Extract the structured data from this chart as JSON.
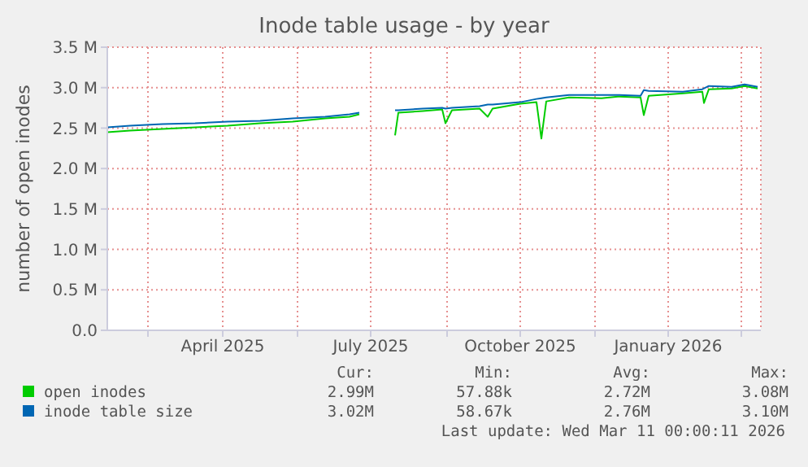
{
  "chart_data": {
    "type": "line",
    "title": "Inode table usage - by year",
    "ylabel": "number of open inodes",
    "x": [
      "2025-02-04",
      "2025-02-18",
      "2025-03-10",
      "2025-03-30",
      "2025-04-19",
      "2025-05-09",
      "2025-05-29",
      "2025-06-18",
      "2025-07-03",
      "2025-07-09",
      "2025-07-20",
      "2025-07-31",
      "2025-08-02",
      "2025-08-17",
      "2025-08-29",
      "2025-08-31",
      "2025-09-04",
      "2025-09-21",
      "2025-09-26",
      "2025-09-29",
      "2025-10-16",
      "2025-10-26",
      "2025-10-29",
      "2025-11-01",
      "2025-11-15",
      "2025-12-05",
      "2025-12-15",
      "2025-12-29",
      "2025-12-31",
      "2026-01-03",
      "2026-01-24",
      "2026-02-05",
      "2026-02-06",
      "2026-02-09",
      "2026-02-23",
      "2026-03-03",
      "2026-03-11"
    ],
    "series": [
      {
        "name": "open inodes",
        "color": "#00cc00",
        "values": [
          2450000,
          2470000,
          2490000,
          2510000,
          2530000,
          2560000,
          2580000,
          2620000,
          2640000,
          2670000,
          null,
          2410000,
          2690000,
          2710000,
          2730000,
          2560000,
          2720000,
          2740000,
          2640000,
          2740000,
          2800000,
          2820000,
          2370000,
          2830000,
          2880000,
          2870000,
          2890000,
          2880000,
          2660000,
          2900000,
          2930000,
          2950000,
          2810000,
          2980000,
          2990000,
          3020000,
          2990000
        ]
      },
      {
        "name": "inode table size",
        "color": "#0066b3",
        "values": [
          2510000,
          2530000,
          2550000,
          2560000,
          2580000,
          2590000,
          2620000,
          2640000,
          2670000,
          2690000,
          null,
          2720000,
          2720000,
          2740000,
          2750000,
          2740000,
          2750000,
          2770000,
          2790000,
          2790000,
          2820000,
          2860000,
          2870000,
          2880000,
          2910000,
          2910000,
          2910000,
          2900000,
          2970000,
          2960000,
          2950000,
          2980000,
          2990000,
          3020000,
          3010000,
          3040000,
          3010000
        ]
      }
    ],
    "xlim": [
      "2025-02-04",
      "2026-03-13"
    ],
    "xticks": [
      {
        "value": "2025-03-01",
        "label": null
      },
      {
        "value": "2025-04-16",
        "label": "April 2025"
      },
      {
        "value": "2025-06-01",
        "label": null
      },
      {
        "value": "2025-07-16",
        "label": "July 2025"
      },
      {
        "value": "2025-09-01",
        "label": null
      },
      {
        "value": "2025-10-16",
        "label": "October 2025"
      },
      {
        "value": "2025-12-01",
        "label": null
      },
      {
        "value": "2026-01-15",
        "label": "January 2026"
      },
      {
        "value": "2026-03-01",
        "label": null
      }
    ],
    "ylim": [
      0,
      3500000
    ],
    "yticks": [
      {
        "value": 0,
        "label": "0.0"
      },
      {
        "value": 500000,
        "label": "0.5 M"
      },
      {
        "value": 1000000,
        "label": "1.0 M"
      },
      {
        "value": 1500000,
        "label": "1.5 M"
      },
      {
        "value": 2000000,
        "label": "2.0 M"
      },
      {
        "value": 2500000,
        "label": "2.5 M"
      },
      {
        "value": 3000000,
        "label": "3.0 M"
      },
      {
        "value": 3500000,
        "label": "3.5 M"
      }
    ],
    "grid": true,
    "legend": "bottom",
    "annotations": [
      "Cur:",
      "Min:",
      "Avg:",
      "Max:",
      "2.99M",
      "57.88k",
      "2.72M",
      "3.08M",
      "3.02M",
      "58.67k",
      "2.76M",
      "3.10M",
      "Last update: Wed Mar 11 00:00:11 2026"
    ]
  }
}
